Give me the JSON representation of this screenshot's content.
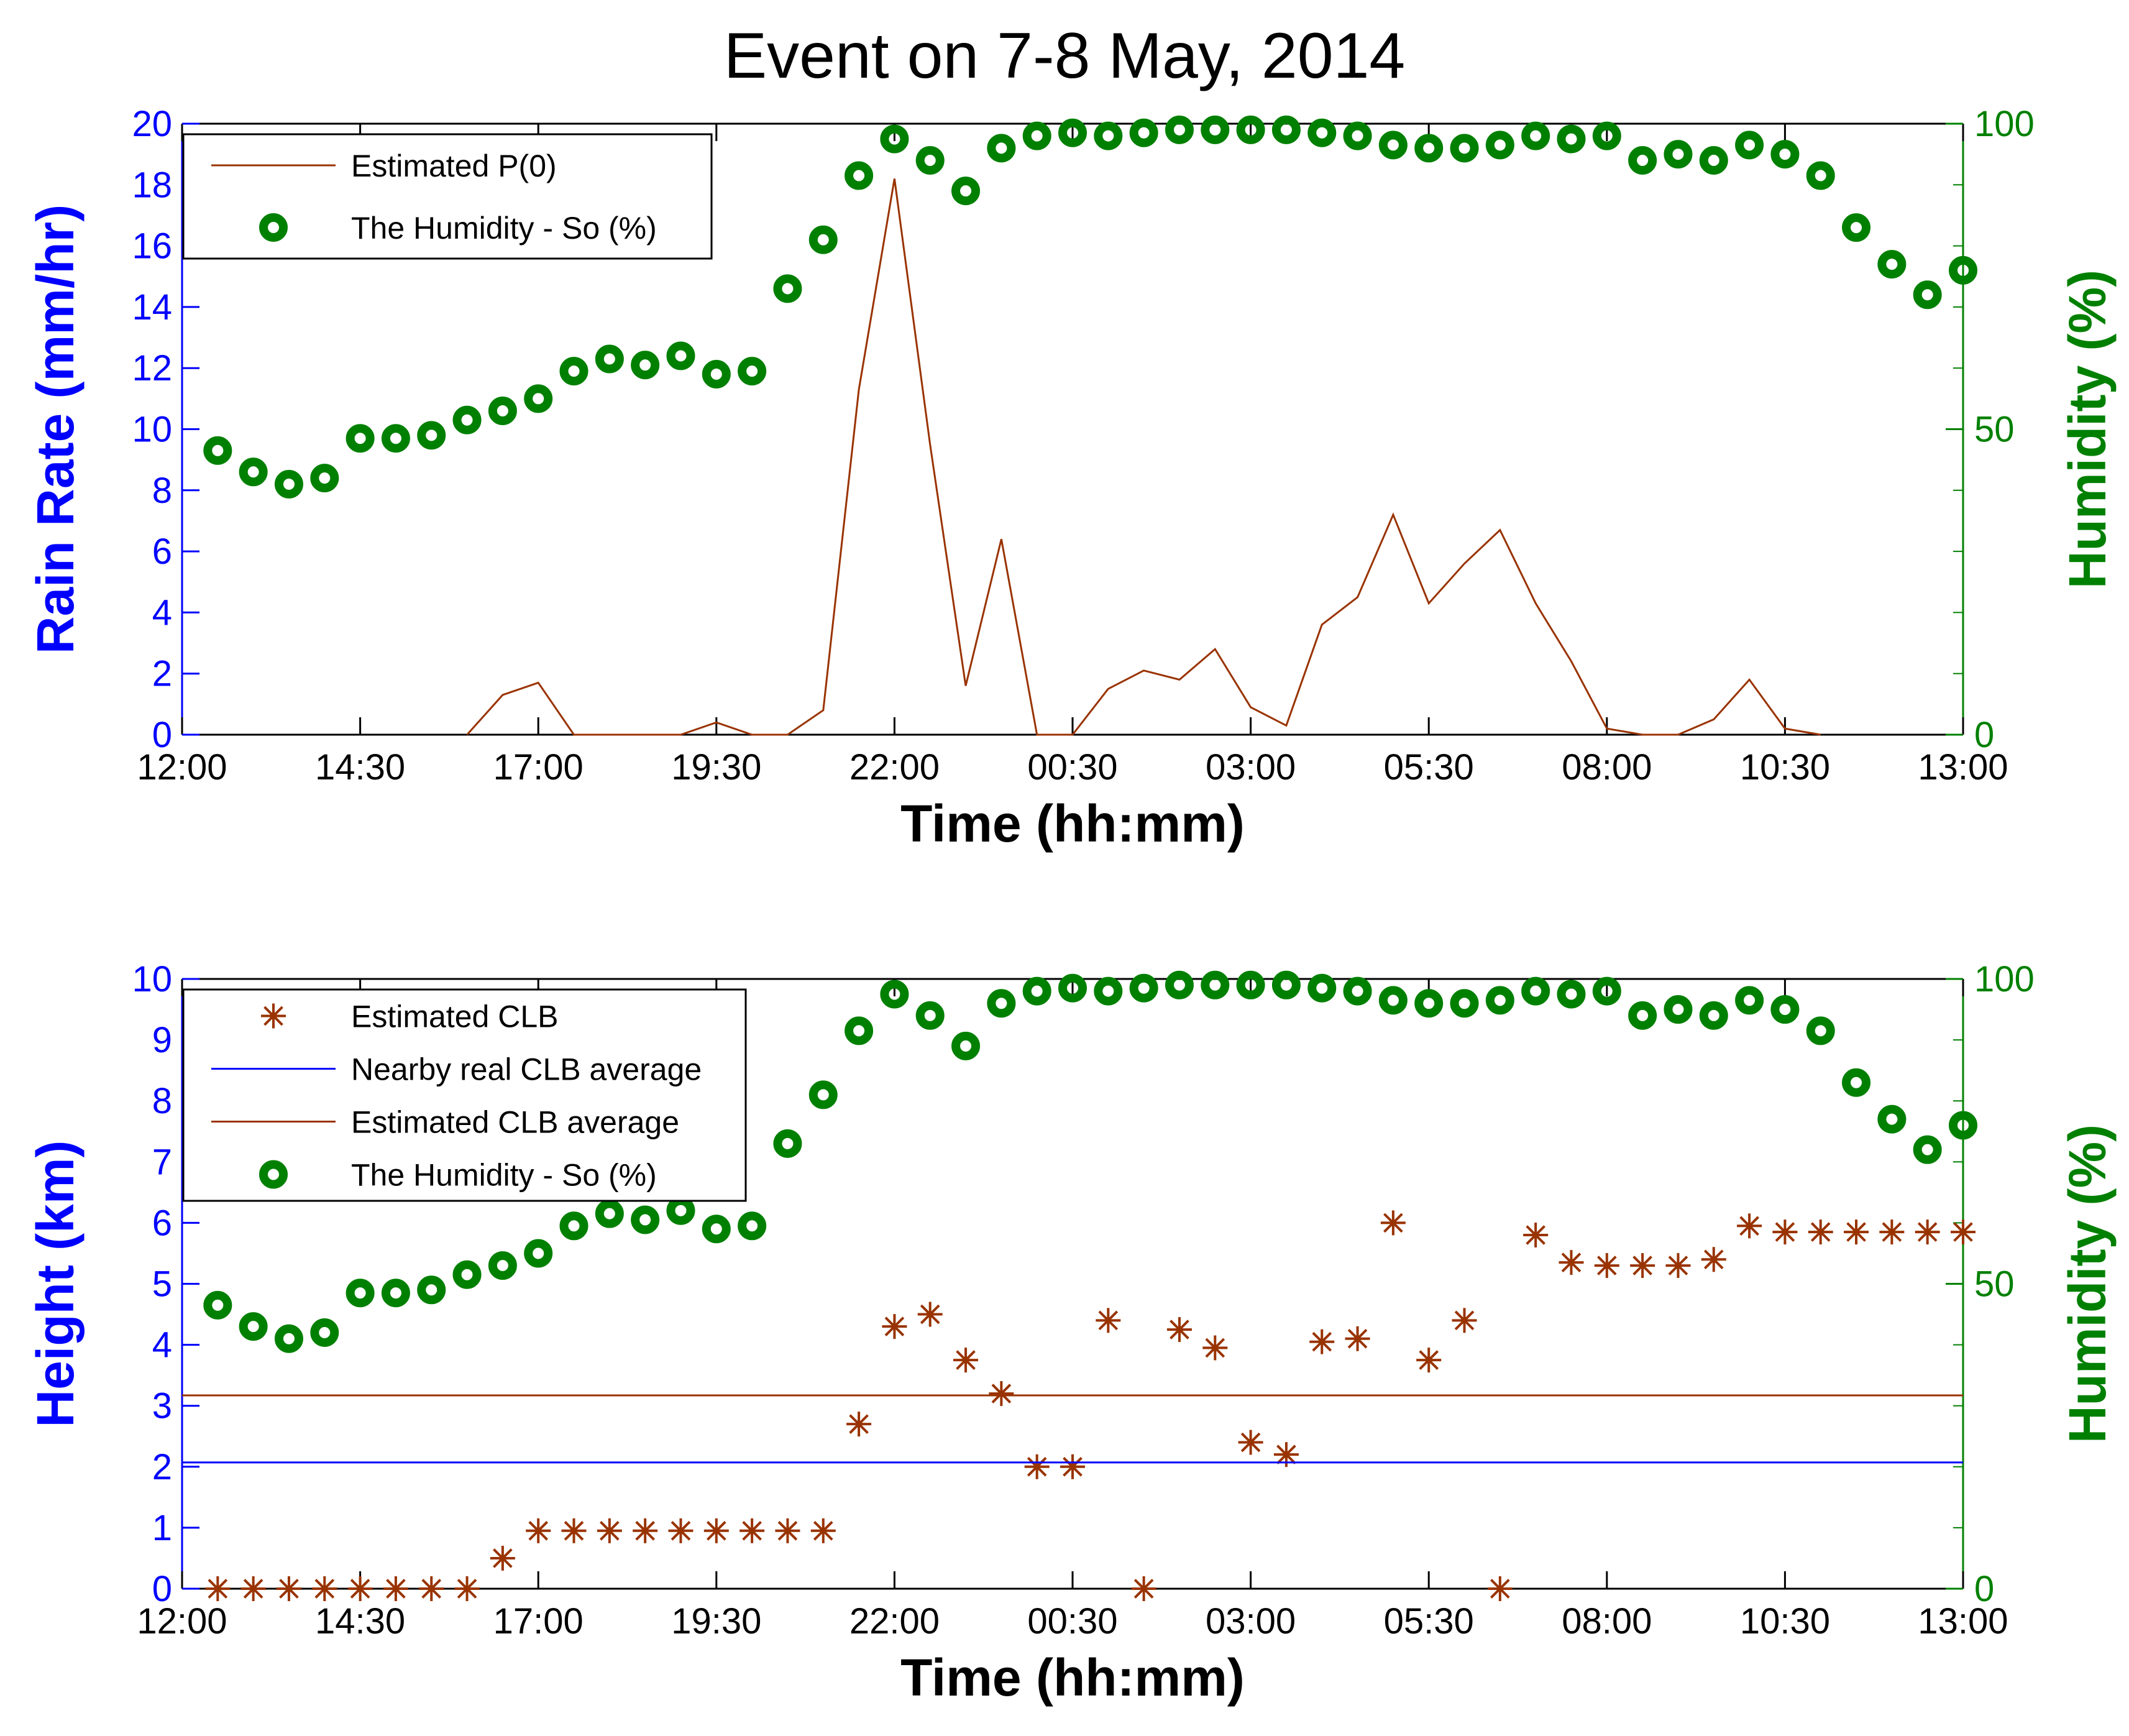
{
  "figure": {
    "title": "Event on 7-8 May, 2014"
  },
  "colors": {
    "axis": "#000000",
    "left_axis": "#0000ff",
    "right_axis": "#008000",
    "rain": "#993300",
    "clb_marker": "#993300",
    "real_clb": "#0000ff",
    "est_clb_avg": "#993300",
    "humidity": "#008000"
  },
  "chart_data": [
    {
      "type": "line",
      "title": "Event on 7-8 May, 2014",
      "xlabel": "Time (hh:mm)",
      "ylabel": "Rain Rate (mm/hr)",
      "y2label": "Humidity (%)",
      "xlim": [
        0,
        25
      ],
      "ylim": [
        0,
        20
      ],
      "y2lim": [
        0,
        100
      ],
      "xticks": [
        0,
        2.5,
        5,
        7.5,
        10,
        12.5,
        15,
        17.5,
        20,
        22.5,
        25
      ],
      "xticklabels": [
        "12:00",
        "14:30",
        "17:00",
        "19:30",
        "22:00",
        "00:30",
        "03:00",
        "05:30",
        "08:00",
        "10:30",
        "13:00"
      ],
      "yticks": [
        0,
        2,
        4,
        6,
        8,
        10,
        12,
        14,
        16,
        18,
        20
      ],
      "yticklabels": [
        "0",
        "2",
        "4",
        "6",
        "8",
        "10",
        "12",
        "14",
        "16",
        "18",
        "20"
      ],
      "y2ticks": [
        0,
        50,
        100
      ],
      "y2ticklabels": [
        "0",
        "50",
        "100"
      ],
      "legend_position": "top-left",
      "legend": [
        "Estimated P(0)",
        "The Humidity - So (%)"
      ],
      "series": [
        {
          "name": "Estimated P(0)",
          "axis": "left",
          "x": [
            4.0,
            4.5,
            5.0,
            5.5,
            6.0,
            6.5,
            7.0,
            7.5,
            8.0,
            8.5,
            9.0,
            9.5,
            10.0,
            10.5,
            11.0,
            11.5,
            12.0,
            12.5,
            13.0,
            13.5,
            14.0,
            14.5,
            15.0,
            15.5,
            16.0,
            16.5,
            17.0,
            17.5,
            18.0,
            18.5,
            19.0,
            19.5,
            20.0,
            20.5,
            21.0,
            21.5,
            22.0,
            22.5,
            23.0
          ],
          "values": [
            0,
            1.3,
            1.7,
            0,
            0,
            0,
            0,
            0.4,
            0,
            0,
            0.8,
            11.3,
            18.2,
            9.5,
            1.6,
            6.4,
            0,
            0,
            1.5,
            2.1,
            1.8,
            2.8,
            0.9,
            0.3,
            3.6,
            4.5,
            7.2,
            4.3,
            5.6,
            6.7,
            4.3,
            2.4,
            0.2,
            0,
            0,
            0.5,
            1.8,
            0.2,
            0
          ]
        },
        {
          "name": "The Humidity - So (%)",
          "axis": "right",
          "x": [
            0.5,
            1.0,
            1.5,
            2.0,
            2.5,
            3.0,
            3.5,
            4.0,
            4.5,
            5.0,
            5.5,
            6.0,
            6.5,
            7.0,
            7.5,
            8.0,
            8.5,
            9.0,
            9.5,
            10.0,
            10.5,
            11.0,
            11.5,
            12.0,
            12.5,
            13.0,
            13.5,
            14.0,
            14.5,
            15.0,
            15.5,
            16.0,
            16.5,
            17.0,
            17.5,
            18.0,
            18.5,
            19.0,
            19.5,
            20.0,
            20.5,
            21.0,
            21.5,
            22.0,
            22.5,
            23.0,
            23.5,
            24.0,
            24.5,
            25.0
          ],
          "values": [
            46.5,
            43,
            41,
            42,
            48.5,
            48.5,
            49,
            51.5,
            53,
            55,
            59.5,
            61.5,
            60.5,
            62,
            59,
            59.5,
            73,
            81,
            91.5,
            97.5,
            94,
            89,
            96,
            98,
            98.5,
            98,
            98.5,
            99,
            99,
            99,
            99,
            98.5,
            98,
            96.5,
            96,
            96,
            96.5,
            98,
            97.5,
            98,
            94,
            95,
            94,
            96.5,
            95,
            91.5,
            83,
            77,
            72,
            76
          ]
        }
      ]
    },
    {
      "type": "scatter",
      "title": "",
      "xlabel": "Time (hh:mm)",
      "ylabel": "Height (km)",
      "y2label": "Humidity (%)",
      "xlim": [
        0,
        25
      ],
      "ylim": [
        0,
        10
      ],
      "y2lim": [
        0,
        100
      ],
      "xticks": [
        0,
        2.5,
        5,
        7.5,
        10,
        12.5,
        15,
        17.5,
        20,
        22.5,
        25
      ],
      "xticklabels": [
        "12:00",
        "14:30",
        "17:00",
        "19:30",
        "22:00",
        "00:30",
        "03:00",
        "05:30",
        "08:00",
        "10:30",
        "13:00"
      ],
      "yticks": [
        0,
        1,
        2,
        3,
        4,
        5,
        6,
        7,
        8,
        9,
        10
      ],
      "yticklabels": [
        "0",
        "1",
        "2",
        "3",
        "4",
        "5",
        "6",
        "7",
        "8",
        "9",
        "10"
      ],
      "y2ticks": [
        0,
        50,
        100
      ],
      "y2ticklabels": [
        "0",
        "50",
        "100"
      ],
      "legend_position": "top-left",
      "legend": [
        "Estimated CLB",
        "Nearby real CLB average",
        "Estimated CLB average",
        "The Humidity - So (%)"
      ],
      "series": [
        {
          "name": "Estimated CLB",
          "axis": "left",
          "x": [
            0.5,
            1.0,
            1.5,
            2.0,
            2.5,
            3.0,
            3.5,
            4.0,
            4.5,
            5.0,
            5.5,
            6.0,
            6.5,
            7.0,
            7.5,
            8.0,
            8.5,
            9.0,
            9.5,
            10.0,
            10.5,
            11.0,
            11.5,
            12.0,
            12.5,
            13.0,
            13.5,
            14.0,
            14.5,
            15.0,
            15.5,
            16.0,
            16.5,
            17.0,
            17.5,
            18.0,
            18.5,
            19.0,
            19.5,
            20.0,
            20.5,
            21.0,
            21.5,
            22.0,
            22.5,
            23.0,
            23.5,
            24.0,
            24.5,
            25.0
          ],
          "values": [
            0,
            0,
            0,
            0,
            0,
            0,
            0,
            0,
            0.5,
            0.95,
            0.95,
            0.95,
            0.95,
            0.95,
            0.95,
            0.95,
            0.95,
            0.95,
            2.7,
            4.3,
            4.5,
            3.75,
            3.2,
            2.0,
            2.0,
            4.4,
            0,
            4.25,
            3.95,
            2.4,
            2.2,
            4.05,
            4.1,
            6.0,
            3.75,
            4.4,
            0,
            5.8,
            5.35,
            5.3,
            5.3,
            5.3,
            5.4,
            5.95,
            5.85,
            5.85,
            5.85,
            5.85,
            5.85,
            5.85
          ]
        },
        {
          "name": "Nearby real CLB average",
          "axis": "left",
          "x": [
            0,
            25
          ],
          "values": [
            2.07,
            2.07
          ]
        },
        {
          "name": "Estimated CLB average",
          "axis": "left",
          "x": [
            0,
            25
          ],
          "values": [
            3.17,
            3.17
          ]
        },
        {
          "name": "The Humidity - So (%)",
          "axis": "right",
          "x": [
            0.5,
            1.0,
            1.5,
            2.0,
            2.5,
            3.0,
            3.5,
            4.0,
            4.5,
            5.0,
            5.5,
            6.0,
            6.5,
            7.0,
            7.5,
            8.0,
            8.5,
            9.0,
            9.5,
            10.0,
            10.5,
            11.0,
            11.5,
            12.0,
            12.5,
            13.0,
            13.5,
            14.0,
            14.5,
            15.0,
            15.5,
            16.0,
            16.5,
            17.0,
            17.5,
            18.0,
            18.5,
            19.0,
            19.5,
            20.0,
            20.5,
            21.0,
            21.5,
            22.0,
            22.5,
            23.0,
            23.5,
            24.0,
            24.5,
            25.0
          ],
          "values": [
            46.5,
            43,
            41,
            42,
            48.5,
            48.5,
            49,
            51.5,
            53,
            55,
            59.5,
            61.5,
            60.5,
            62,
            59,
            59.5,
            73,
            81,
            91.5,
            97.5,
            94,
            89,
            96,
            98,
            98.5,
            98,
            98.5,
            99,
            99,
            99,
            99,
            98.5,
            98,
            96.5,
            96,
            96,
            96.5,
            98,
            97.5,
            98,
            94,
            95,
            94,
            96.5,
            95,
            91.5,
            83,
            77,
            72,
            76
          ]
        }
      ]
    }
  ]
}
